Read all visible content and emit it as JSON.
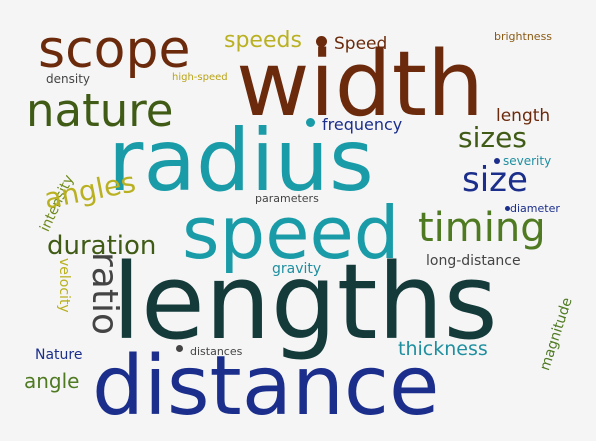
{
  "words": [
    {
      "text": "scope",
      "color": "#6b2a0c"
    },
    {
      "text": "speeds",
      "color": "#b9b121"
    },
    {
      "text": "Speed",
      "color": "#6b2a0c"
    },
    {
      "text": "brightness",
      "color": "#8a5a14"
    },
    {
      "text": "width",
      "color": "#6b2a0c"
    },
    {
      "text": "density",
      "color": "#444444"
    },
    {
      "text": "high-speed",
      "color": "#b9a416"
    },
    {
      "text": "nature",
      "color": "#3f5b16"
    },
    {
      "text": "length",
      "color": "#6b2a0c"
    },
    {
      "text": "frequency",
      "color": "#1b2e8c"
    },
    {
      "text": "sizes",
      "color": "#3f5b16"
    },
    {
      "text": "radius",
      "color": "#1a9ca8"
    },
    {
      "text": "intensity",
      "color": "#6e8a1c"
    },
    {
      "text": "severity",
      "color": "#1f8fa0"
    },
    {
      "text": "size",
      "color": "#1b2e8c"
    },
    {
      "text": "angles",
      "color": "#b9b121"
    },
    {
      "text": "parameters",
      "color": "#444444"
    },
    {
      "text": "diameter",
      "color": "#1b2e8c"
    },
    {
      "text": "timing",
      "color": "#4f7a22"
    },
    {
      "text": "speed",
      "color": "#1a9ca8"
    },
    {
      "text": "duration",
      "color": "#3f5b16"
    },
    {
      "text": "long-distance",
      "color": "#444444"
    },
    {
      "text": "gravity",
      "color": "#1f8fa0"
    },
    {
      "text": "ratio",
      "color": "#444444"
    },
    {
      "text": "velocity",
      "color": "#b9b121"
    },
    {
      "text": "lengths",
      "color": "#143a3a"
    },
    {
      "text": "magnitude",
      "color": "#4f7a22"
    },
    {
      "text": "thickness",
      "color": "#1f8fa0"
    },
    {
      "text": "Nature",
      "color": "#1b2e8c"
    },
    {
      "text": "distances",
      "color": "#444444"
    },
    {
      "text": "angle",
      "color": "#4f7a22"
    },
    {
      "text": "distance",
      "color": "#1b2e8c"
    }
  ],
  "dots": [
    {
      "color": "#6b2a0c"
    },
    {
      "color": "#1a9ca8"
    },
    {
      "color": "#1b2e8c"
    },
    {
      "color": "#444444"
    },
    {
      "color": "#1b2e8c"
    }
  ]
}
